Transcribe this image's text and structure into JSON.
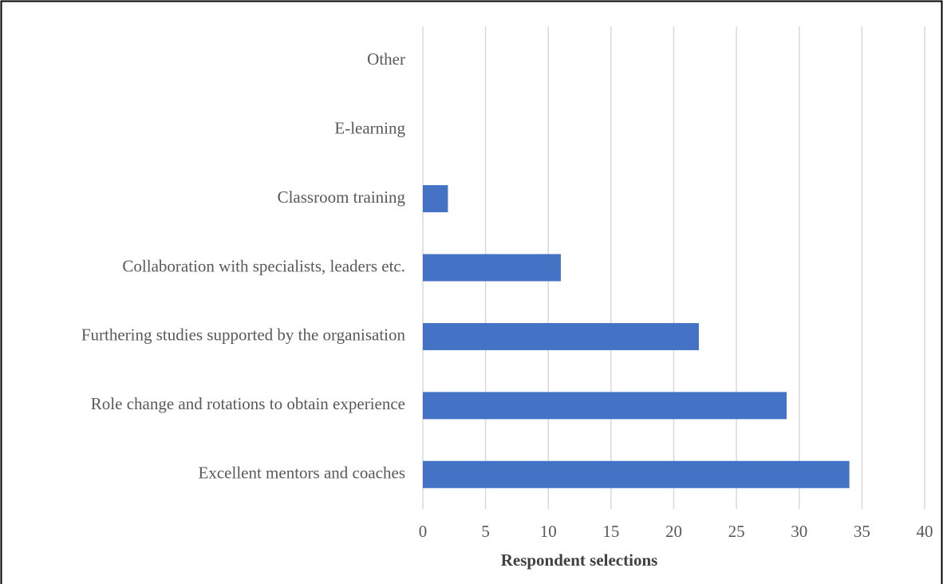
{
  "chart_data": {
    "type": "bar",
    "orientation": "horizontal",
    "xlabel": "Respondent selections",
    "categories": [
      "Other",
      "E-learning",
      "Classroom training",
      "Collaboration with specialists, leaders etc.",
      "Furthering studies supported by the organisation",
      "Role change and rotations to obtain experience",
      "Excellent mentors and coaches"
    ],
    "values": [
      0,
      0,
      2,
      11,
      22,
      29,
      34
    ],
    "color": "#4472c4",
    "xlim": [
      0,
      40
    ],
    "xticks": [
      0,
      5,
      10,
      15,
      20,
      25,
      30,
      35,
      40
    ],
    "grid": true
  }
}
